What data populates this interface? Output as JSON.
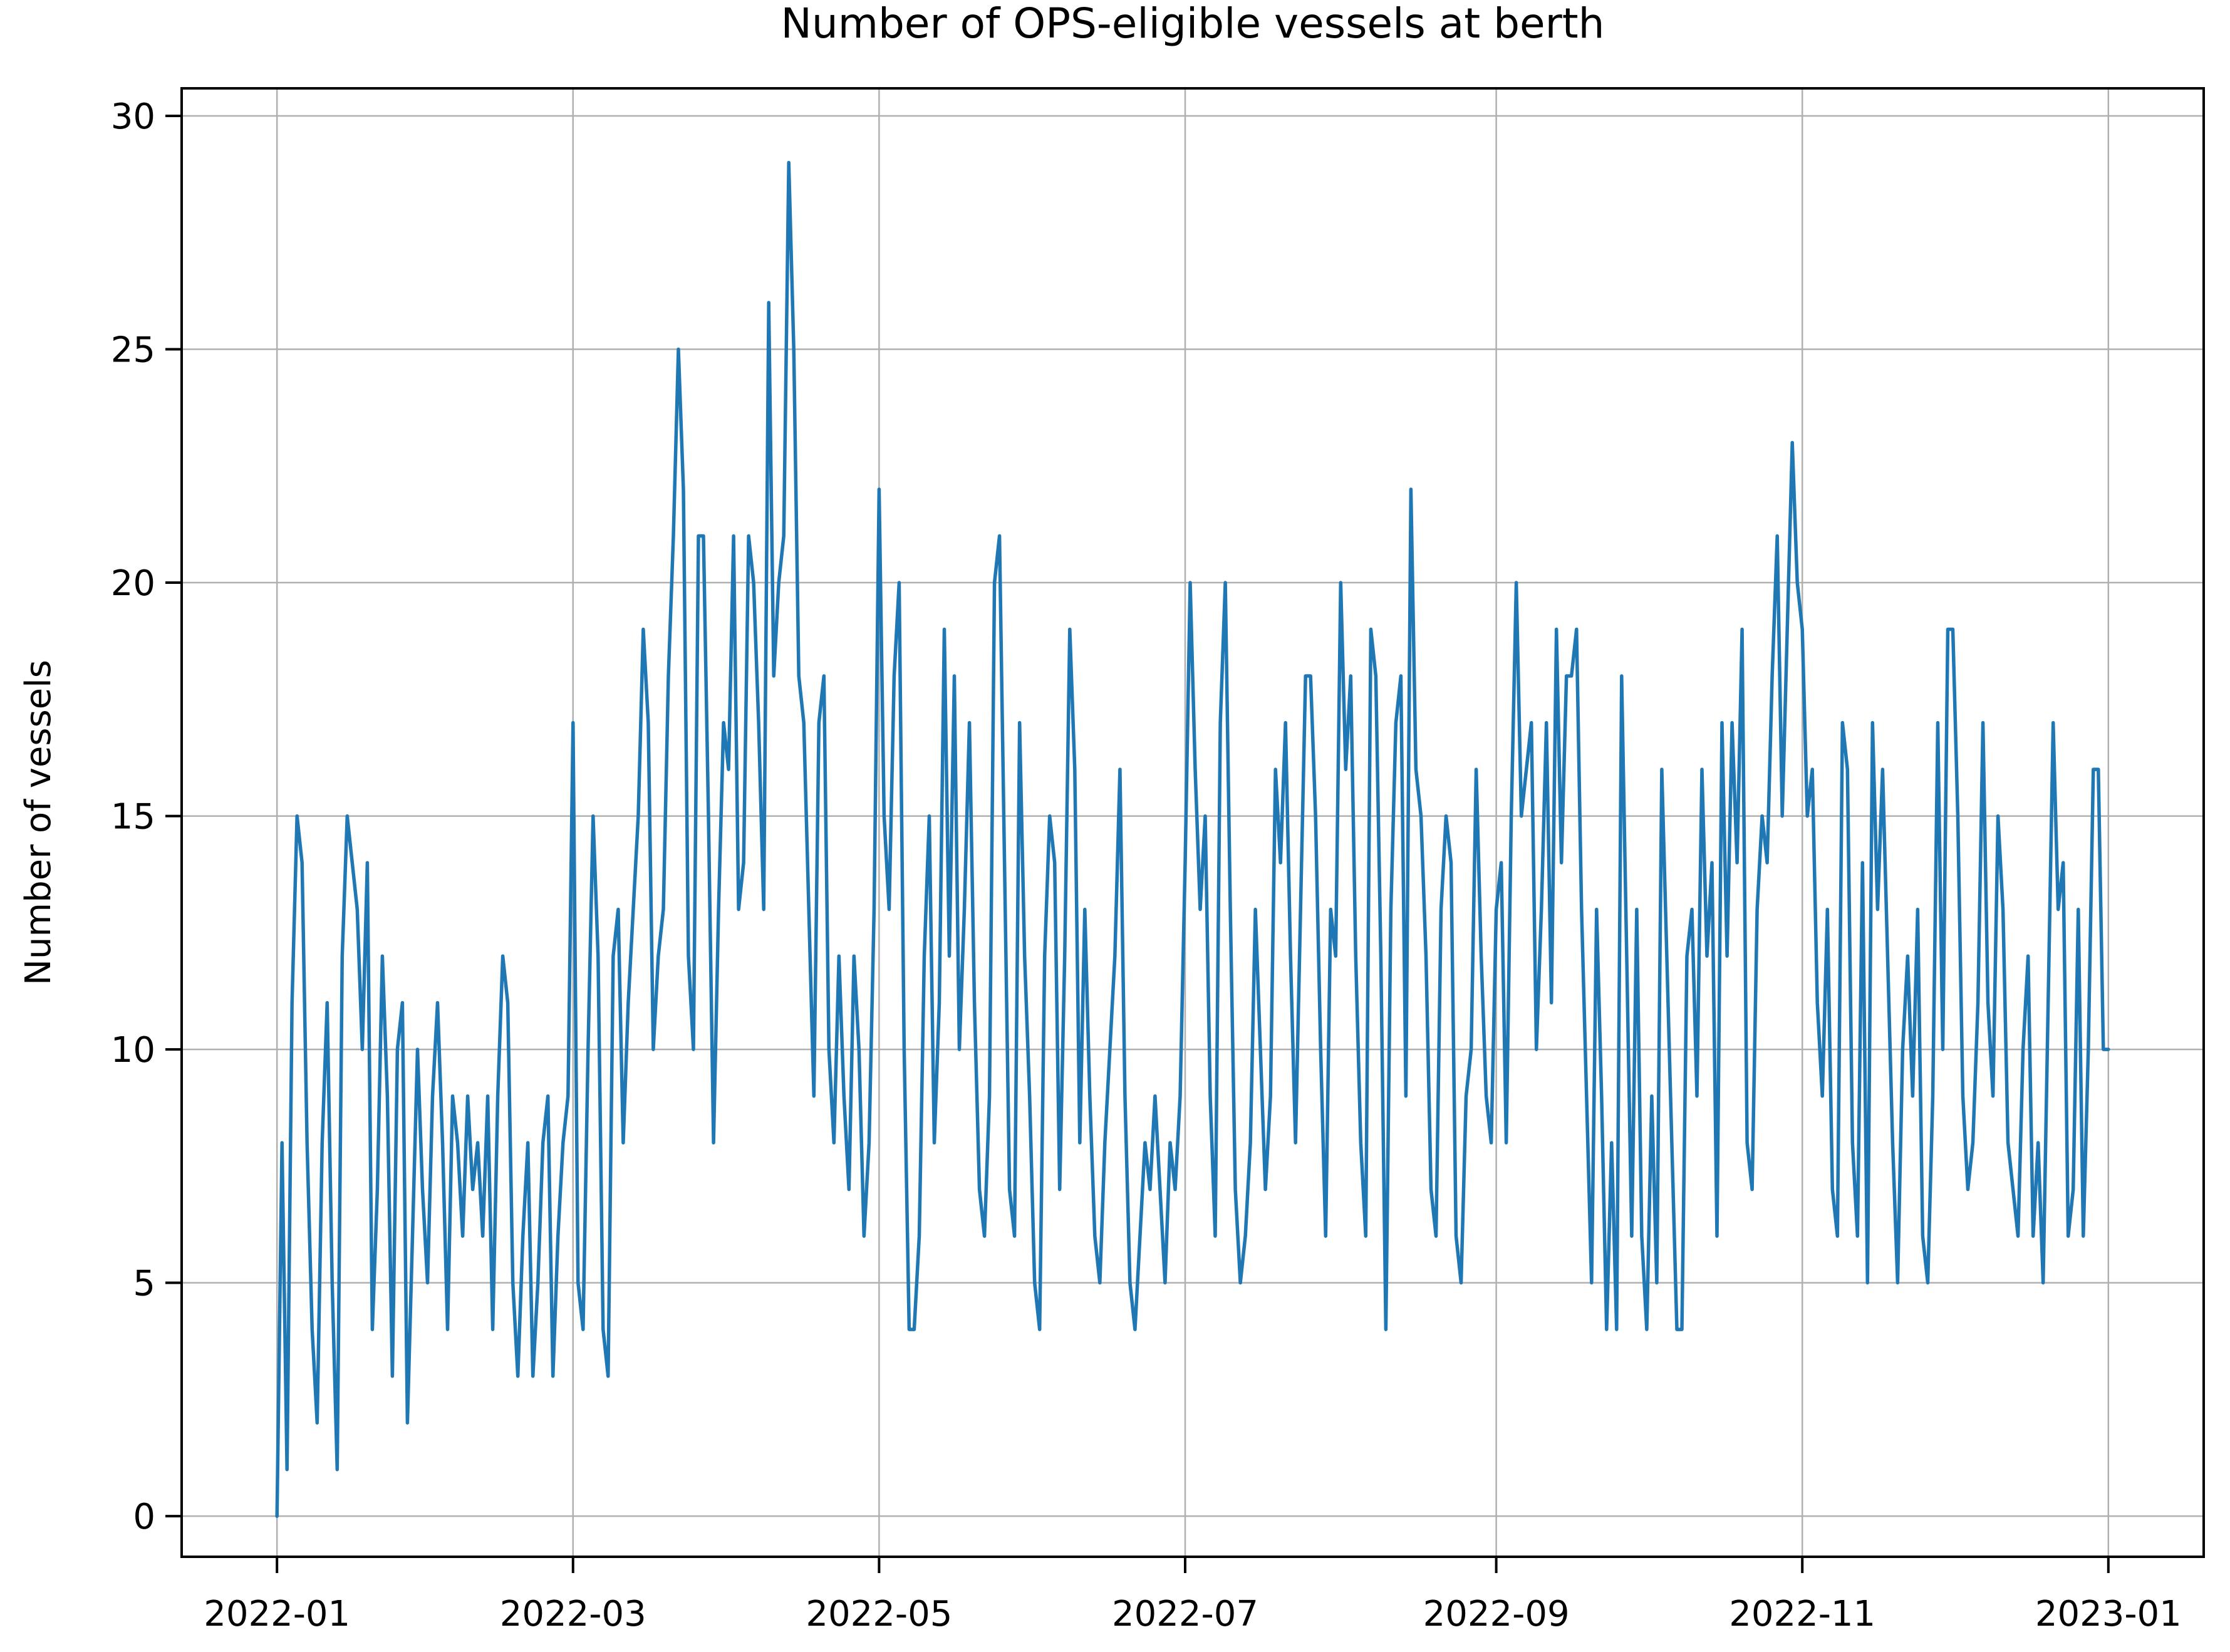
{
  "chart_data": {
    "type": "line",
    "title": "Number of OPS-eligible vessels at berth",
    "xlabel": "",
    "ylabel": "Number of vessels",
    "series_name": "OPS-eligible vessels at berth",
    "line_color": "#1f77b4",
    "grid": true,
    "grid_color": "#b0b0b0",
    "background_color": "#ffffff",
    "x_start_date": "2022-01-01",
    "x_step_days": 1,
    "x_tick_labels": [
      "2022-01",
      "2022-03",
      "2022-05",
      "2022-07",
      "2022-09",
      "2022-11",
      "2023-01"
    ],
    "x_tick_day_offsets": [
      0,
      59,
      120,
      181,
      243,
      304,
      365
    ],
    "xlim_days": [
      -19,
      384
    ],
    "y_ticks": [
      0,
      5,
      10,
      15,
      20,
      25,
      30
    ],
    "ylim": [
      -0.87,
      30.59
    ],
    "values": [
      0,
      8,
      1,
      11,
      15,
      14,
      8,
      4,
      2,
      8,
      11,
      5,
      1,
      12,
      15,
      14,
      13,
      10,
      14,
      4,
      7,
      12,
      9,
      3,
      10,
      11,
      2,
      6,
      10,
      7,
      5,
      9,
      11,
      8,
      4,
      9,
      8,
      6,
      9,
      7,
      8,
      6,
      9,
      4,
      9,
      12,
      11,
      5,
      3,
      6,
      8,
      3,
      5,
      8,
      9,
      3,
      6,
      8,
      9,
      17,
      5,
      4,
      10,
      15,
      12,
      4,
      3,
      12,
      13,
      8,
      11,
      13,
      15,
      19,
      17,
      10,
      12,
      13,
      18,
      21,
      25,
      22,
      12,
      10,
      21,
      21,
      15,
      8,
      13,
      17,
      16,
      21,
      13,
      14,
      21,
      20,
      17,
      13,
      26,
      18,
      20,
      21,
      29,
      25,
      18,
      17,
      13,
      9,
      17,
      18,
      10,
      8,
      12,
      9,
      7,
      12,
      10,
      6,
      8,
      13,
      22,
      15,
      13,
      18,
      20,
      10,
      4,
      4,
      6,
      12,
      15,
      8,
      11,
      19,
      12,
      18,
      10,
      13,
      17,
      11,
      7,
      6,
      9,
      20,
      21,
      14,
      7,
      6,
      17,
      12,
      9,
      5,
      4,
      12,
      15,
      14,
      7,
      12,
      19,
      16,
      8,
      13,
      9,
      6,
      5,
      8,
      10,
      12,
      16,
      9,
      5,
      4,
      6,
      8,
      7,
      9,
      7,
      5,
      8,
      7,
      9,
      14,
      20,
      16,
      13,
      15,
      9,
      6,
      17,
      20,
      13,
      7,
      5,
      6,
      8,
      13,
      10,
      7,
      9,
      16,
      14,
      17,
      12,
      8,
      13,
      18,
      18,
      15,
      10,
      6,
      13,
      12,
      20,
      16,
      18,
      12,
      8,
      6,
      19,
      18,
      12,
      4,
      13,
      17,
      18,
      9,
      22,
      16,
      15,
      12,
      7,
      6,
      13,
      15,
      14,
      6,
      5,
      9,
      10,
      16,
      12,
      9,
      8,
      13,
      14,
      8,
      15,
      20,
      15,
      16,
      17,
      10,
      13,
      17,
      11,
      19,
      14,
      18,
      18,
      19,
      13,
      9,
      5,
      13,
      9,
      4,
      8,
      4,
      18,
      12,
      6,
      13,
      6,
      4,
      9,
      5,
      16,
      12,
      8,
      4,
      4,
      12,
      13,
      9,
      16,
      12,
      14,
      6,
      17,
      12,
      17,
      14,
      19,
      8,
      7,
      13,
      15,
      14,
      18,
      21,
      15,
      19,
      23,
      20,
      19,
      15,
      16,
      11,
      9,
      13,
      7,
      6,
      17,
      16,
      8,
      6,
      14,
      5,
      17,
      13,
      16,
      12,
      8,
      5,
      10,
      12,
      9,
      13,
      6,
      5,
      9,
      17,
      10,
      19,
      19,
      15,
      9,
      7,
      8,
      11,
      17,
      11,
      9,
      15,
      13,
      8,
      7,
      6,
      10,
      12,
      6,
      8,
      5,
      11,
      17,
      13,
      14,
      6,
      7,
      13,
      6,
      10,
      16,
      16,
      10,
      10
    ]
  }
}
